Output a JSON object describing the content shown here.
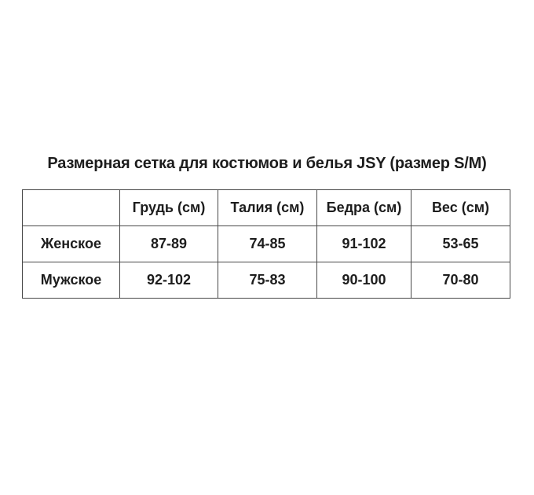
{
  "page": {
    "title": "Размерная сетка для костюмов и белья JSY (размер S/M)"
  },
  "colors": {
    "background": "#ffffff",
    "text": "#1d1d1d",
    "table_border": "#484848"
  },
  "size_table": {
    "columns": [
      "",
      "Грудь (см)",
      "Талия (см)",
      "Бедра (см)",
      "Вес (см)"
    ],
    "rows": [
      {
        "label": "Женское",
        "values": [
          "87-89",
          "74-85",
          "91-102",
          "53-65"
        ]
      },
      {
        "label": "Мужское",
        "values": [
          "92-102",
          "75-83",
          "90-100",
          "70-80"
        ]
      }
    ]
  }
}
